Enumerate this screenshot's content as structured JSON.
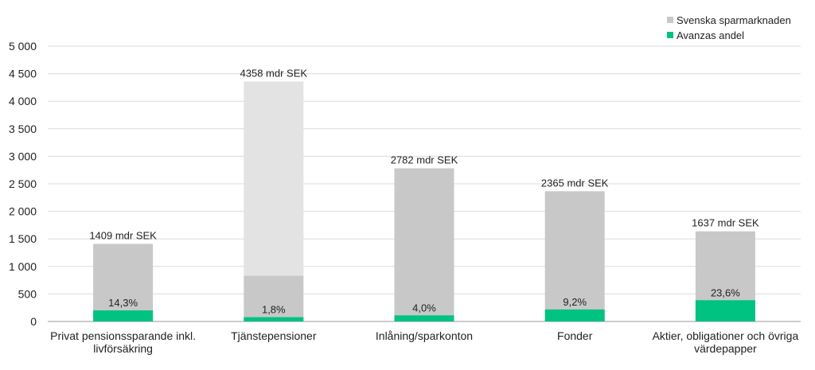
{
  "chart_data": {
    "type": "bar",
    "categories": [
      [
        "Privat pensionssparande inkl.",
        "livförsäkring"
      ],
      [
        "Tjänstepensioner"
      ],
      [
        "Inlåning/sparkonton"
      ],
      [
        "Fonder"
      ],
      [
        "Aktier, obligationer och övriga",
        "värdepapper"
      ]
    ],
    "series": [
      {
        "name": "Svenska sparmarknaden",
        "values": [
          1409,
          4358,
          2782,
          2365,
          1637
        ]
      },
      {
        "name": "Avanzas andel",
        "values": [
          201,
          78,
          111,
          218,
          386
        ]
      }
    ],
    "segment_top": [
      null,
      830,
      null,
      null,
      null
    ],
    "totals_labels": [
      "1409 mdr SEK",
      "4358 mdr SEK",
      "2782 mdr SEK",
      "2365 mdr SEK",
      "1637 mdr SEK"
    ],
    "share_labels": [
      "14,3%",
      "1,8%",
      "4,0%",
      "9,2%",
      "23,6%"
    ],
    "yticks": [
      0,
      500,
      1000,
      1500,
      2000,
      2500,
      3000,
      3500,
      4000,
      4500,
      5000
    ],
    "ytick_labels": [
      "0",
      "500",
      "1 000",
      "1 500",
      "2 000",
      "2 500",
      "3 000",
      "3 500",
      "4 000",
      "4 500",
      "5 000"
    ],
    "ylim": [
      0,
      5000
    ],
    "grid": true,
    "legend_position": "top-right",
    "colors": {
      "market": "#c8c8c8",
      "market_light": "#e3e3e3",
      "share": "#00c281",
      "grid": "#dcdcdc",
      "axis": "#999999"
    }
  }
}
